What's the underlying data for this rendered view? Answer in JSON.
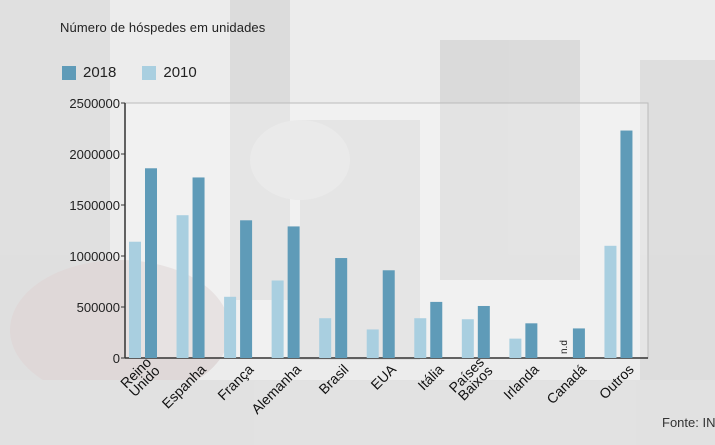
{
  "title": "Número de hóspedes em unidades",
  "source": "Fonte: IN",
  "colors": {
    "series_2018": "#5f9bb8",
    "series_2010": "#a9cfe0",
    "axis": "#333333",
    "frame": "#bbbbbb"
  },
  "chart_data": {
    "type": "bar",
    "title": "Número de hóspedes em unidades",
    "xlabel": "",
    "ylabel": "",
    "ylim": [
      0,
      2500000
    ],
    "yticks": [
      "0",
      "500000",
      "1000000",
      "1500000",
      "2000000",
      "2500000"
    ],
    "ytick_values": [
      0,
      500000,
      1000000,
      1500000,
      2000000,
      2500000
    ],
    "categories": [
      {
        "label": [
          "Reino",
          "Unido"
        ]
      },
      {
        "label": [
          "Espanha"
        ]
      },
      {
        "label": [
          "França"
        ]
      },
      {
        "label": [
          "Alemanha"
        ]
      },
      {
        "label": [
          "Brasil"
        ]
      },
      {
        "label": [
          "EUA"
        ]
      },
      {
        "label": [
          "Itália"
        ]
      },
      {
        "label": [
          "Países",
          "Baixos"
        ]
      },
      {
        "label": [
          "Irlanda"
        ]
      },
      {
        "label": [
          "Canadá"
        ]
      },
      {
        "label": [
          "Outros"
        ]
      }
    ],
    "series": [
      {
        "name": "2010",
        "values": [
          1140000,
          1400000,
          600000,
          760000,
          390000,
          280000,
          390000,
          380000,
          190000,
          null,
          1100000
        ]
      },
      {
        "name": "2018",
        "values": [
          1860000,
          1770000,
          1350000,
          1290000,
          980000,
          860000,
          550000,
          510000,
          340000,
          290000,
          2230000
        ]
      }
    ],
    "annotations": [
      {
        "category": "Canadá",
        "series": "2010",
        "text": "n.d"
      }
    ],
    "legend": [
      "2018",
      "2010"
    ],
    "legend_position": "top-left",
    "grid": false
  }
}
